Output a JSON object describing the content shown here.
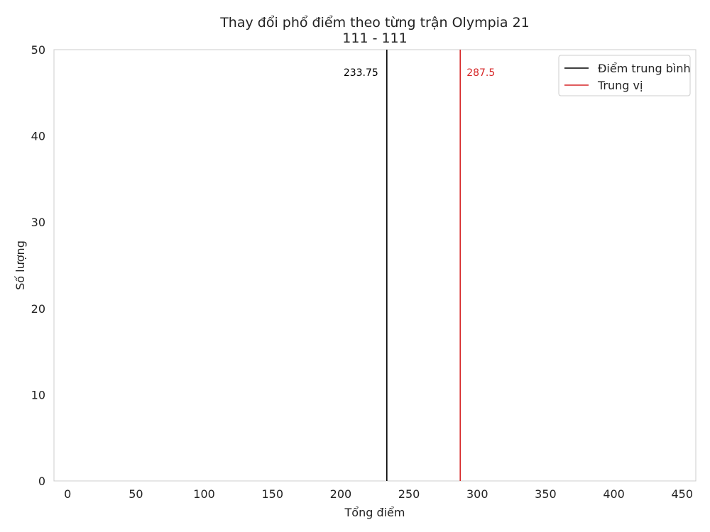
{
  "chart_data": {
    "type": "histogram",
    "title": "Thay đổi phổ điểm theo từng trận Olympia 21",
    "subtitle": "111 - 111",
    "xlabel": "Tổng điểm",
    "ylabel": "Số lượng",
    "xlim": [
      -10,
      460
    ],
    "ylim": [
      0,
      50
    ],
    "x_ticks": [
      0,
      50,
      100,
      150,
      200,
      250,
      300,
      350,
      400,
      450
    ],
    "y_ticks": [
      0,
      10,
      20,
      30,
      40,
      50
    ],
    "grid": false,
    "bars": [],
    "reference_lines": [
      {
        "name": "Điểm trung bình",
        "x": 233.75,
        "label": "233.75",
        "color": "#000000",
        "label_side": "left"
      },
      {
        "name": "Trung vị",
        "x": 287.5,
        "label": "287.5",
        "color": "#d62728",
        "label_side": "right"
      }
    ],
    "legend": {
      "position": "top-right",
      "entries": [
        {
          "label": "Điểm trung bình",
          "color": "#000000"
        },
        {
          "label": "Trung vị",
          "color": "#d62728"
        }
      ]
    }
  }
}
